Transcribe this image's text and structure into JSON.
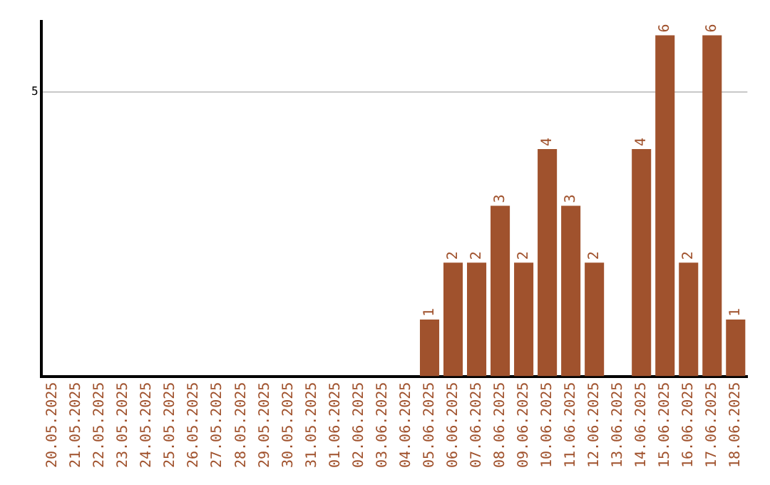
{
  "chart_data": {
    "type": "bar",
    "categories": [
      "20.05.2025",
      "21.05.2025",
      "22.05.2025",
      "23.05.2025",
      "24.05.2025",
      "25.05.2025",
      "26.05.2025",
      "27.05.2025",
      "28.05.2025",
      "29.05.2025",
      "30.05.2025",
      "31.05.2025",
      "01.06.2025",
      "02.06.2025",
      "03.06.2025",
      "04.06.2025",
      "05.06.2025",
      "06.06.2025",
      "07.06.2025",
      "08.06.2025",
      "09.06.2025",
      "10.06.2025",
      "11.06.2025",
      "12.06.2025",
      "13.06.2025",
      "14.06.2025",
      "15.06.2025",
      "16.06.2025",
      "17.06.2025",
      "18.06.2025"
    ],
    "values": [
      null,
      null,
      null,
      null,
      null,
      null,
      null,
      null,
      null,
      null,
      null,
      null,
      null,
      null,
      null,
      null,
      1,
      2,
      2,
      3,
      2,
      4,
      3,
      2,
      null,
      4,
      6,
      2,
      6,
      1
    ],
    "data_labels": true,
    "color": "#a0522d",
    "ylim": [
      0,
      6.25
    ],
    "yticks": [
      5
    ],
    "grid": "y",
    "legend": false
  }
}
